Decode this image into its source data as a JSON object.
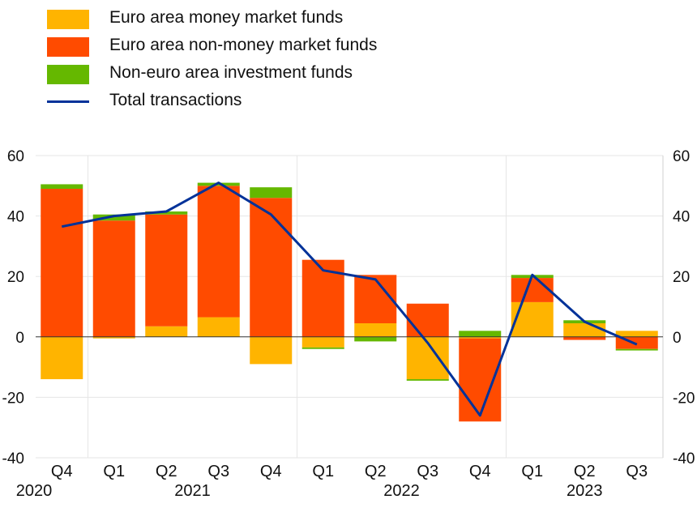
{
  "legend": [
    {
      "label": "Euro area money market funds",
      "color": "#FFB400",
      "kind": "bar"
    },
    {
      "label": "Euro area non-money market funds",
      "color": "#FF4B00",
      "kind": "bar"
    },
    {
      "label": "Non-euro area investment funds",
      "color": "#65B800",
      "kind": "bar"
    },
    {
      "label": "Total transactions",
      "color": "#003299",
      "kind": "line"
    }
  ],
  "chart_data": {
    "type": "bar",
    "stacked": true,
    "categories": [
      "Q4",
      "Q1",
      "Q2",
      "Q3",
      "Q4",
      "Q1",
      "Q2",
      "Q3",
      "Q4",
      "Q1",
      "Q2",
      "Q3"
    ],
    "years": [
      {
        "label": "2020",
        "from": 0,
        "to": 0
      },
      {
        "label": "2021",
        "from": 1,
        "to": 4
      },
      {
        "label": "2022",
        "from": 5,
        "to": 8
      },
      {
        "label": "2023",
        "from": 9,
        "to": 11
      }
    ],
    "series": [
      {
        "name": "Euro area money market funds",
        "color": "#FFB400",
        "values": [
          -14,
          -0.5,
          3.5,
          6.5,
          -9,
          -3.5,
          4.5,
          -14,
          -0.5,
          11.5,
          4.5,
          2
        ]
      },
      {
        "name": "Euro area non-money market funds",
        "color": "#FF4B00",
        "values": [
          49,
          38.5,
          37,
          43.5,
          46,
          25.5,
          16,
          11,
          -27.5,
          8,
          -1,
          -4
        ]
      },
      {
        "name": "Non-euro area investment funds",
        "color": "#65B800",
        "values": [
          1.5,
          2,
          1,
          1,
          3.5,
          -0.5,
          -1.5,
          -0.5,
          2,
          1,
          1,
          -0.5
        ]
      }
    ],
    "line": {
      "name": "Total transactions",
      "color": "#003299",
      "values": [
        36.5,
        40,
        41.5,
        51,
        40.5,
        22,
        19,
        -2,
        -26,
        20.5,
        5,
        -2.5
      ]
    },
    "ylim": [
      -40,
      60
    ],
    "yticks": [
      60,
      40,
      20,
      0,
      -20,
      -40
    ],
    "grid": true,
    "legend_position": "top-left"
  }
}
